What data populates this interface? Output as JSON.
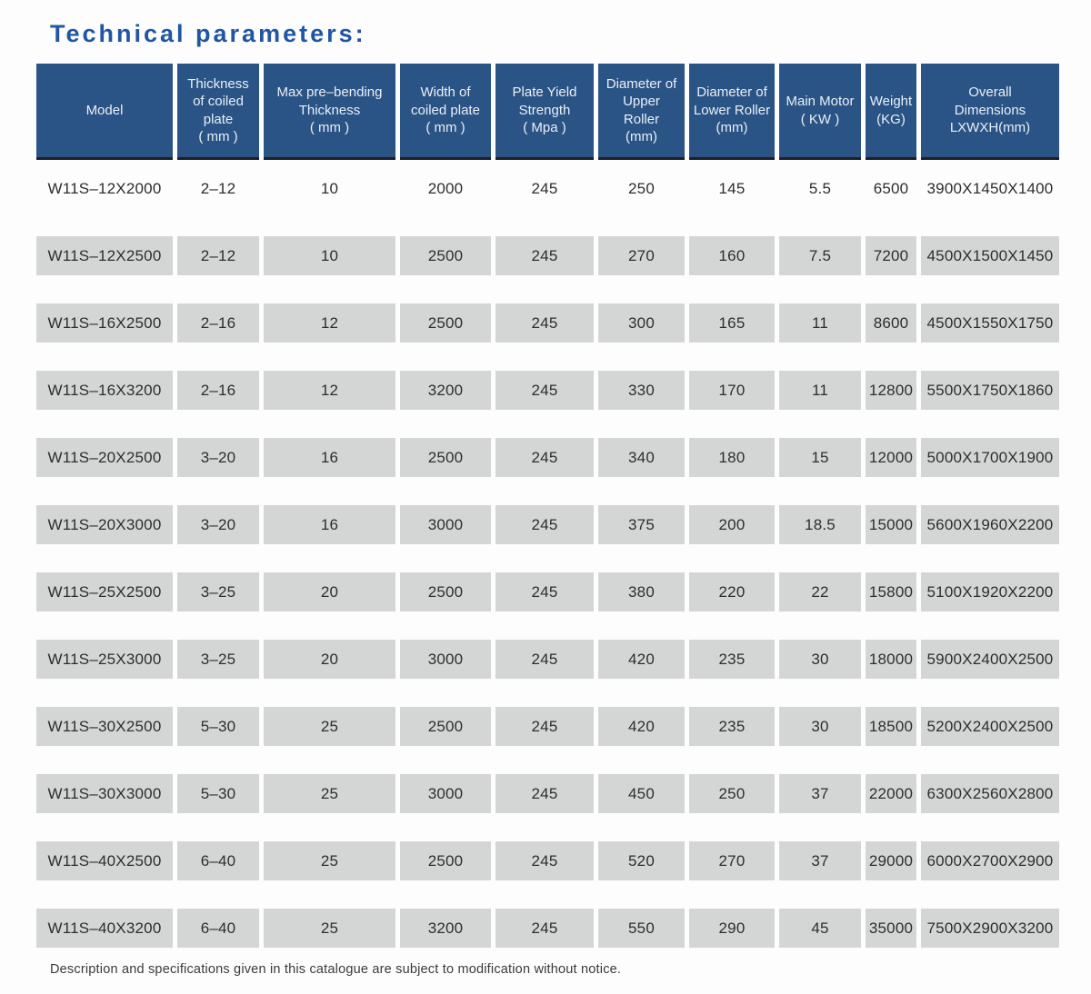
{
  "title": "Technical parameters:",
  "table": {
    "columns": [
      {
        "id": "model",
        "label": "Model"
      },
      {
        "id": "thickness",
        "label": "Thickness\nof coiled\nplate\n( mm )"
      },
      {
        "id": "max-prebending",
        "label": "Max pre–bending\nThickness\n( mm )"
      },
      {
        "id": "coil-width",
        "label": "Width of\ncoiled plate\n( mm )"
      },
      {
        "id": "yield-strength",
        "label": "Plate Yield\nStrength\n( Mpa )"
      },
      {
        "id": "upper-roller",
        "label": "Diameter of\nUpper\nRoller\n(mm)"
      },
      {
        "id": "lower-roller",
        "label": "Diameter of\nLower Roller\n(mm)"
      },
      {
        "id": "main-motor",
        "label": "Main Motor\n( KW )"
      },
      {
        "id": "weight",
        "label": "Weight\n(KG)"
      },
      {
        "id": "dimensions",
        "label": "Overall\nDimensions\nLXWXH(mm)"
      }
    ],
    "rows": [
      [
        "W11S–12X2000",
        "2–12",
        "10",
        "2000",
        "245",
        "250",
        "145",
        "5.5",
        "6500",
        "3900X1450X1400"
      ],
      [
        "W11S–12X2500",
        "2–12",
        "10",
        "2500",
        "245",
        "270",
        "160",
        "7.5",
        "7200",
        "4500X1500X1450"
      ],
      [
        "W11S–16X2500",
        "2–16",
        "12",
        "2500",
        "245",
        "300",
        "165",
        "11",
        "8600",
        "4500X1550X1750"
      ],
      [
        "W11S–16X3200",
        "2–16",
        "12",
        "3200",
        "245",
        "330",
        "170",
        "11",
        "12800",
        "5500X1750X1860"
      ],
      [
        "W11S–20X2500",
        "3–20",
        "16",
        "2500",
        "245",
        "340",
        "180",
        "15",
        "12000",
        "5000X1700X1900"
      ],
      [
        "W11S–20X3000",
        "3–20",
        "16",
        "3000",
        "245",
        "375",
        "200",
        "18.5",
        "15000",
        "5600X1960X2200"
      ],
      [
        "W11S–25X2500",
        "3–25",
        "20",
        "2500",
        "245",
        "380",
        "220",
        "22",
        "15800",
        "5100X1920X2200"
      ],
      [
        "W11S–25X3000",
        "3–25",
        "20",
        "3000",
        "245",
        "420",
        "235",
        "30",
        "18000",
        "5900X2400X2500"
      ],
      [
        "W11S–30X2500",
        "5–30",
        "25",
        "2500",
        "245",
        "420",
        "235",
        "30",
        "18500",
        "5200X2400X2500"
      ],
      [
        "W11S–30X3000",
        "5–30",
        "25",
        "3000",
        "245",
        "450",
        "250",
        "37",
        "22000",
        "6300X2560X2800"
      ],
      [
        "W11S–40X2500",
        "6–40",
        "25",
        "2500",
        "245",
        "520",
        "270",
        "37",
        "29000",
        "6000X2700X2900"
      ],
      [
        "W11S–40X3200",
        "6–40",
        "25",
        "3200",
        "245",
        "550",
        "290",
        "45",
        "35000",
        "7500X2900X3200"
      ]
    ]
  },
  "footer": {
    "note": "Description and specifications given in this catalogue are subject to modification without notice."
  },
  "colors": {
    "header_bg": "#2b5486",
    "header_text": "#e9eff6",
    "row_gray": "#d4d6d5",
    "title_blue": "#2156a3",
    "body_text": "#2d2d2d",
    "divider": "#c3c7c7"
  }
}
